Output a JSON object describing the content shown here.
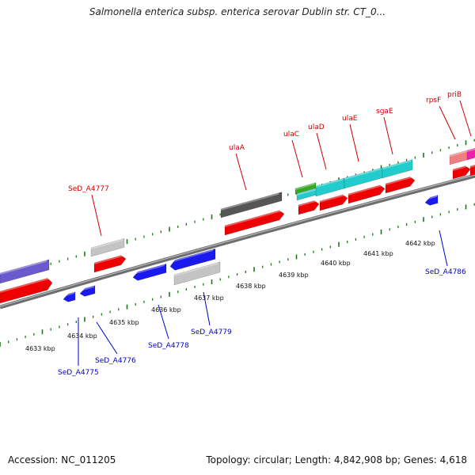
{
  "title": "Salmonella enterica subsp. enterica serovar Dublin str. CT_0...",
  "footer": {
    "accession": "Accession: NC_011205",
    "info": "Topology: circular; Length: 4,842,908 bp; Genes: 4,618"
  },
  "colors": {
    "backbone": "#8a8a8a",
    "tick": "#1a7a1a",
    "label_top": "#cc0000",
    "label_bottom": "#0000cc",
    "cds_red": "#ee0000",
    "cds_blue": "#1a1aee",
    "cds_cyan": "#22cccc",
    "cds_green": "#33aa22",
    "cds_darkgray": "#555555",
    "cds_lightgray": "#c4c4c4",
    "cds_purple": "#6a5acd",
    "cds_salmon": "#f08080",
    "cds_magenta": "#ee22aa"
  },
  "scale_labels": [
    "4633 kbp",
    "4634 kbp",
    "4635 kbp",
    "4636 kbp",
    "4637 kbp",
    "4638 kbp",
    "4639 kbp",
    "4640 kbp",
    "4641 kbp",
    "4642 kbp"
  ],
  "top_gene_labels": [
    "SeD_A4777",
    "ulaA",
    "ulaC",
    "ulaD",
    "ulaE",
    "sgaE",
    "rpsF",
    "priB"
  ],
  "bottom_gene_labels": [
    "SeD_A4775",
    "SeD_A4776",
    "SeD_A4778",
    "SeD_A4779",
    "SeD_A4786"
  ]
}
